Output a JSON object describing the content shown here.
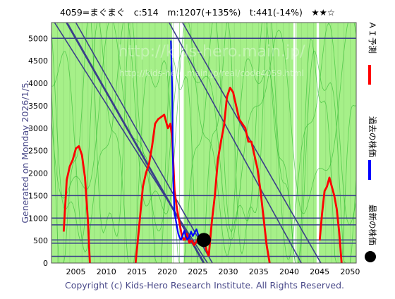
{
  "header": {
    "title": "4059=まぐまぐ　c:514　m:1207(+135%)　t:441(-14%)　★★☆"
  },
  "side_label": "Generated on Monday 2026/1/5.",
  "legend": {
    "ai": "ＡＩ予測",
    "past": "過去の株価",
    "latest": "最新の株価"
  },
  "watermark": {
    "url1": "http://kids-hero.main.jp/",
    "url2": "http://kids-hero.main.jp/real/code4059.html"
  },
  "footer": "Copyright (c) Kids-Hero Research Institute. All Rights Reserved.",
  "colors": {
    "plot_bg": "#a6f089",
    "ai_line": "#ff0000",
    "past_line": "#0000ff",
    "trend_line": "#3a3f8a",
    "grid_line": "#3a3f8a",
    "faint_green": "#33bb33"
  },
  "chart_data": {
    "type": "line",
    "title": "4059=まぐまぐ　c:514　m:1207(+135%)　t:441(-14%)　★★☆",
    "xlabel": "",
    "ylabel": "",
    "xlim": [
      2001,
      2051
    ],
    "ylim": [
      0,
      5350
    ],
    "x_ticks": [
      2005,
      2010,
      2015,
      2020,
      2025,
      2030,
      2035,
      2040,
      2045,
      2050
    ],
    "y_ticks": [
      0,
      500,
      1000,
      1500,
      2000,
      2500,
      3000,
      3500,
      4000,
      4500,
      5000
    ],
    "horizontal_lines": [
      5000,
      1500,
      1000,
      850,
      514,
      441,
      150
    ],
    "white_bands": [
      [
        2020.8,
        2022.7
      ],
      [
        2040.7,
        2041.2
      ],
      [
        2044.5,
        2044.9
      ]
    ],
    "trend_lines": [
      {
        "x": [
          2001.5,
          2026.6
        ],
        "y": [
          5350,
          0
        ]
      },
      {
        "x": [
          2003.5,
          2026.0
        ],
        "y": [
          5350,
          0
        ]
      },
      {
        "x": [
          2005.0,
          2027.4
        ],
        "y": [
          5350,
          0
        ]
      },
      {
        "x": [
          2020.3,
          2042.0
        ],
        "y": [
          5350,
          0
        ]
      },
      {
        "x": [
          2022.5,
          2045.2
        ],
        "y": [
          5350,
          0
        ]
      }
    ],
    "series": [
      {
        "name": "ＡＩ予測",
        "segments": [
          {
            "x": [
              2003.0,
              2003.5,
              2004.0,
              2004.5,
              2005.0,
              2005.5,
              2006.0,
              2006.5,
              2007.0,
              2007.3
            ],
            "y": [
              700,
              1850,
              2150,
              2300,
              2550,
              2600,
              2400,
              1900,
              900,
              0
            ]
          },
          {
            "x": [
              2014.8,
              2015.3,
              2016.0,
              2016.5,
              2017.0,
              2017.5,
              2018.0,
              2018.5,
              2019.0,
              2019.5,
              2019.8,
              2020.1,
              2020.5,
              2020.8,
              2021.2,
              2021.6,
              2022.0,
              2022.4,
              2022.8
            ],
            "y": [
              0,
              700,
              1700,
              2000,
              2200,
              2600,
              3100,
              3200,
              3250,
              3300,
              3150,
              3000,
              3100,
              2800,
              1600,
              1200,
              900,
              600,
              500
            ]
          },
          {
            "x": [
              2022.8,
              2023.2,
              2023.6,
              2024.0,
              2024.4,
              2024.8,
              2025.2,
              2025.6,
              2026.0,
              2026.4,
              2026.8
            ],
            "y": [
              500,
              650,
              450,
              500,
              400,
              480,
              600,
              450,
              550,
              300,
              150
            ]
          },
          {
            "x": [
              2026.8,
              2027.3,
              2027.8,
              2028.3,
              2028.8,
              2029.3,
              2029.8,
              2030.3,
              2030.8,
              2031.3,
              2031.8,
              2032.3,
              2032.8,
              2033.3,
              2033.8,
              2034.3,
              2034.8,
              2035.3,
              2035.8,
              2036.3,
              2036.8
            ],
            "y": [
              150,
              900,
              1500,
              2300,
              2700,
              3050,
              3700,
              3900,
              3800,
              3500,
              3200,
              3100,
              3000,
              2700,
              2700,
              2400,
              2100,
              1600,
              1000,
              400,
              0
            ]
          },
          {
            "x": [
              2045.0,
              2045.4,
              2045.8,
              2046.2,
              2046.6,
              2047.0,
              2047.4,
              2047.8,
              2048.2,
              2048.6
            ],
            "y": [
              500,
              1100,
              1600,
              1700,
              1900,
              1700,
              1500,
              1200,
              700,
              0
            ]
          }
        ]
      },
      {
        "name": "過去の株価",
        "x": [
          2020.6,
          2020.8,
          2020.9,
          2021.0,
          2021.1,
          2021.2,
          2021.4,
          2021.6,
          2021.8,
          2022.0,
          2022.2,
          2022.4,
          2022.6,
          2022.8,
          2023.0,
          2023.3,
          2023.6,
          2023.9,
          2024.2,
          2024.5,
          2024.8,
          2025.1,
          2025.4,
          2025.7
        ],
        "y": [
          4950,
          3900,
          2500,
          1700,
          1400,
          1100,
          950,
          800,
          650,
          580,
          520,
          560,
          650,
          720,
          600,
          520,
          580,
          700,
          600,
          680,
          750,
          620,
          560,
          530
        ]
      }
    ],
    "latest_point": {
      "x": 2026.0,
      "y": 514
    }
  }
}
